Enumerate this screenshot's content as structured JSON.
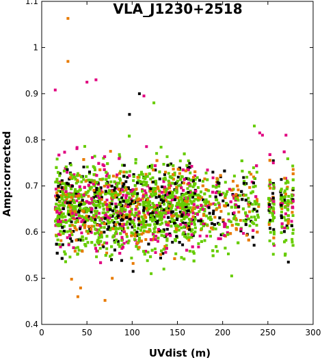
{
  "chart_data": {
    "type": "scatter",
    "title": "VLA_J1230+2518",
    "xlabel": "UVdist (m)",
    "ylabel": "Amp:corrected",
    "xlim": [
      0,
      300
    ],
    "ylim": [
      0.4,
      1.1
    ],
    "x_ticks": [
      "0",
      "50",
      "100",
      "150",
      "200",
      "250",
      "300"
    ],
    "y_ticks": [
      "0.4",
      "0.5",
      "0.6",
      "0.7",
      "0.8",
      "0.9",
      "1",
      "1.1"
    ],
    "grid": false,
    "legend": "none",
    "colors": {
      "green": "#66cc00",
      "orange": "#e87a00",
      "magenta": "#e0007f",
      "black": "#000000"
    },
    "distribution": {
      "x_range": [
        12,
        278
      ],
      "dense_x_range": [
        15,
        240
      ],
      "y_center": 0.655,
      "y_core_range": [
        0.55,
        0.77
      ],
      "approx_points": 3000
    },
    "outliers": [
      {
        "x": 29,
        "y": 1.063,
        "color": "orange"
      },
      {
        "x": 29,
        "y": 0.97,
        "color": "orange"
      },
      {
        "x": 15,
        "y": 0.908,
        "color": "magenta"
      },
      {
        "x": 50,
        "y": 0.925,
        "color": "magenta"
      },
      {
        "x": 60,
        "y": 0.93,
        "color": "magenta"
      },
      {
        "x": 108,
        "y": 0.9,
        "color": "black"
      },
      {
        "x": 113,
        "y": 0.895,
        "color": "magenta"
      },
      {
        "x": 124,
        "y": 0.88,
        "color": "green"
      },
      {
        "x": 97,
        "y": 0.855,
        "color": "black"
      },
      {
        "x": 33,
        "y": 0.498,
        "color": "orange"
      },
      {
        "x": 43,
        "y": 0.479,
        "color": "orange"
      },
      {
        "x": 40,
        "y": 0.46,
        "color": "orange"
      },
      {
        "x": 70,
        "y": 0.452,
        "color": "orange"
      },
      {
        "x": 78,
        "y": 0.5,
        "color": "orange"
      },
      {
        "x": 101,
        "y": 0.515,
        "color": "black"
      },
      {
        "x": 121,
        "y": 0.51,
        "color": "green"
      },
      {
        "x": 135,
        "y": 0.52,
        "color": "green"
      },
      {
        "x": 210,
        "y": 0.505,
        "color": "green"
      },
      {
        "x": 235,
        "y": 0.83,
        "color": "green"
      },
      {
        "x": 241,
        "y": 0.815,
        "color": "magenta"
      },
      {
        "x": 244,
        "y": 0.81,
        "color": "magenta"
      },
      {
        "x": 256,
        "y": 0.75,
        "color": "magenta"
      },
      {
        "x": 270,
        "y": 0.81,
        "color": "magenta"
      },
      {
        "x": 256,
        "y": 0.552,
        "color": "green"
      },
      {
        "x": 269,
        "y": 0.55,
        "color": "green"
      },
      {
        "x": 278,
        "y": 0.605,
        "color": "green"
      }
    ]
  }
}
